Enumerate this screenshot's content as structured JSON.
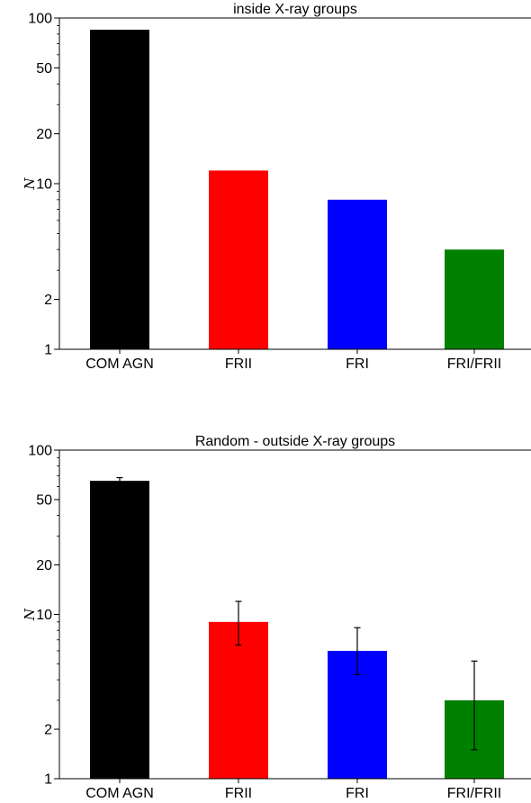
{
  "chart_data": [
    {
      "type": "bar",
      "title": "inside X-ray groups",
      "ylabel": "N",
      "yscale": "log",
      "ylim": [
        1,
        100
      ],
      "yticks": [
        1,
        2,
        10,
        20,
        50,
        100
      ],
      "ytick_labels": [
        "1",
        "2",
        "10",
        "20",
        "50",
        "100"
      ],
      "categories": [
        "COM AGN",
        "FRII",
        "FRI",
        "FRI/FRII"
      ],
      "values": [
        85,
        12,
        8,
        4
      ],
      "errors": null,
      "colors": [
        "#000000",
        "#ff0000",
        "#0000ff",
        "#008000"
      ]
    },
    {
      "type": "bar",
      "title": "Random - outside X-ray groups",
      "ylabel": "N",
      "yscale": "log",
      "ylim": [
        1,
        100
      ],
      "yticks": [
        1,
        2,
        10,
        20,
        50,
        100
      ],
      "ytick_labels": [
        "1",
        "2",
        "10",
        "20",
        "50",
        "100"
      ],
      "categories": [
        "COM AGN",
        "FRII",
        "FRI",
        "FRI/FRII"
      ],
      "values": [
        65,
        9,
        6,
        3
      ],
      "errors": [
        [
          62,
          68
        ],
        [
          6.5,
          12
        ],
        [
          4.3,
          8.3
        ],
        [
          1.5,
          5.2
        ]
      ],
      "colors": [
        "#000000",
        "#ff0000",
        "#0000ff",
        "#008000"
      ]
    }
  ]
}
